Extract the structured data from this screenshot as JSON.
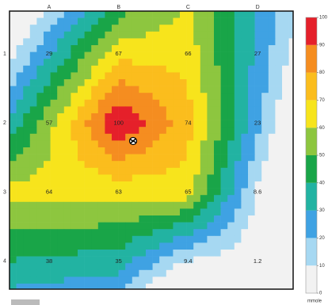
{
  "chart_data": {
    "type": "heatmap",
    "columns": [
      "A",
      "B",
      "C",
      "D"
    ],
    "rows": [
      "1",
      "2",
      "3",
      "4"
    ],
    "values": [
      [
        29,
        67,
        66,
        27
      ],
      [
        57,
        100,
        74,
        23
      ],
      [
        64,
        63,
        65,
        8.6
      ],
      [
        38,
        35,
        9.4,
        1.2
      ]
    ],
    "colors": [
      "#f2f2f2",
      "#a6d8f2",
      "#3fa2e3",
      "#22b3a2",
      "#19a548",
      "#8dc63f",
      "#f7e41c",
      "#fbbd1d",
      "#f58d20",
      "#e5202a"
    ],
    "zlim": [
      0,
      100
    ],
    "zticks": [
      0,
      10,
      20,
      30,
      40,
      50,
      60,
      70,
      80,
      90,
      100
    ],
    "colorbar_label": "mmole"
  }
}
